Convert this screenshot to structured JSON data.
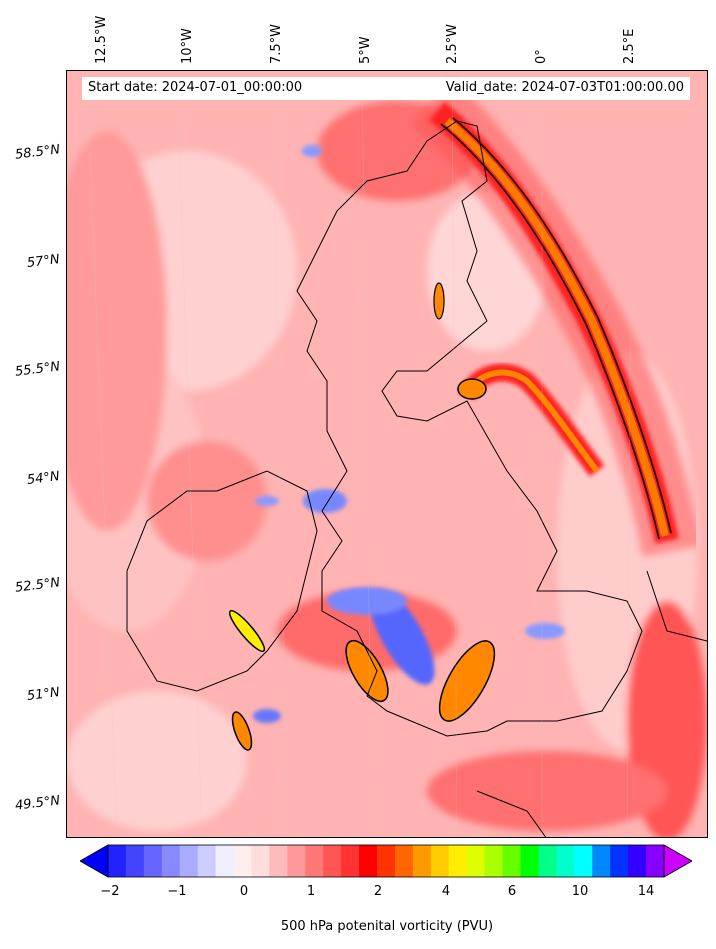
{
  "header": {
    "start_date": "Start date: 2024-07-01_00:00:00",
    "valid_date": "Valid_date: 2024-07-03T01:00:00.00"
  },
  "axes": {
    "lon_labels": [
      "12.5°W",
      "10°W",
      "7.5°W",
      "5°W",
      "2.5°W",
      "0°",
      "2.5°E"
    ],
    "lat_labels": [
      "58.5°N",
      "57°N",
      "55.5°N",
      "54°N",
      "52.5°N",
      "51°N",
      "49.5°N"
    ]
  },
  "colorbar": {
    "label": "500 hPa potenital vorticity (PVU)",
    "tick_labels": [
      "−2",
      "−1",
      "0",
      "1",
      "2",
      "4",
      "6",
      "10",
      "14"
    ],
    "colors": [
      "#0000ff",
      "#2222ff",
      "#4444ff",
      "#6666ff",
      "#8888ff",
      "#aaaaff",
      "#ccccff",
      "#eeeeff",
      "#ffeeee",
      "#ffdddd",
      "#ffbbbb",
      "#ff9999",
      "#ff7777",
      "#ff5555",
      "#ff3333",
      "#ff0000",
      "#ff3300",
      "#ff6600",
      "#ff9900",
      "#ffcc00",
      "#ffee00",
      "#ddff00",
      "#aaff00",
      "#66ff00",
      "#00ff00",
      "#00ff88",
      "#00ffcc",
      "#00ffff",
      "#0088ff",
      "#0033ff",
      "#3300ff",
      "#8800ff",
      "#cc00ff"
    ]
  },
  "map": {
    "field": "500 hPa potential vorticity",
    "colors": {
      "background": "#ffb3b3",
      "light": "#ffd6d6",
      "medium": "#ff8080",
      "strong": "#ff3030",
      "orange": "#ff8800",
      "blue": "#6677ff",
      "coast": "#000000"
    }
  }
}
